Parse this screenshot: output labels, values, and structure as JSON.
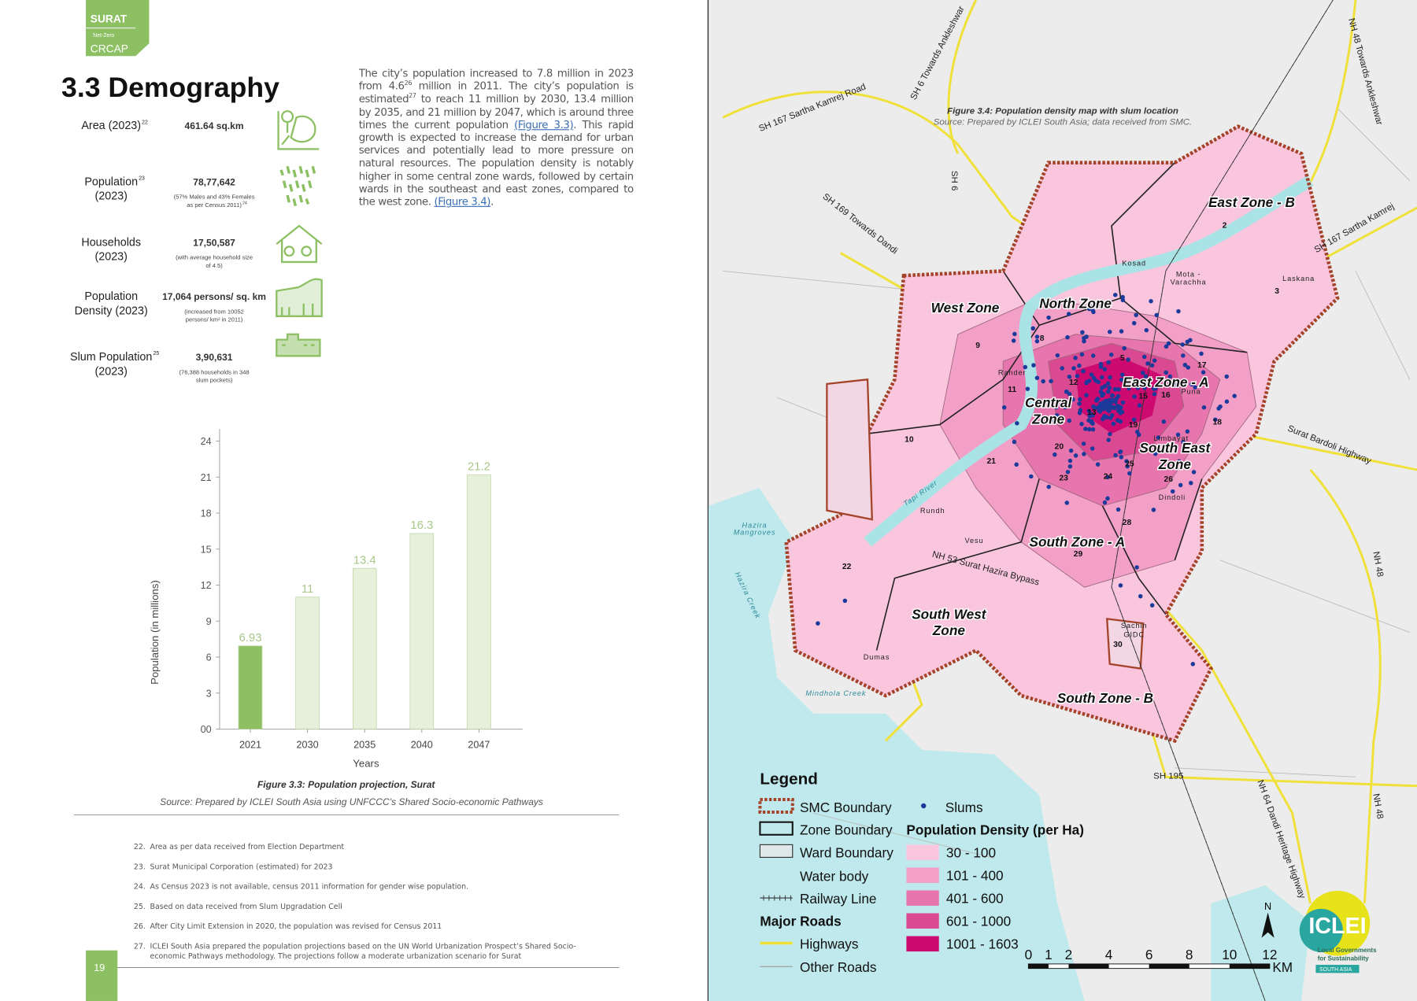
{
  "header": {
    "brand": "SURAT",
    "sub": "Net-Zero",
    "name": "CRCAP"
  },
  "section_title": "3.3 Demography",
  "stats": [
    {
      "label": [
        "Area (2023)"
      ],
      "sup": "22",
      "value": "461.64 sq.km"
    },
    {
      "label": [
        "Population",
        "(2023)"
      ],
      "sup": "23",
      "value": "78,77,642",
      "note": [
        "(57% Males and 43% Females",
        "as per Census 2011)"
      ],
      "note_sup": "24"
    },
    {
      "label": [
        "Households",
        "(2023)"
      ],
      "value": "17,50,587",
      "note": [
        "(with average household size",
        "of 4.5)"
      ]
    },
    {
      "label": [
        "Population",
        "Density (2023)"
      ],
      "value": "17,064 persons/ sq. km",
      "note": [
        "(increased from 10052",
        "persons/ km² in 2011)"
      ]
    },
    {
      "label": [
        "Slum Population",
        "(2023)"
      ],
      "sup": "25",
      "value": "3,90,631",
      "note": [
        "(76,388 households in 348",
        "slum pockets)"
      ]
    }
  ],
  "paragraph": [
    {
      "text": "The city’s population increased to 7.8 million in 2023 from 4.6"
    },
    {
      "sup": "26"
    },
    {
      "text": " million in 2011. The city’s population is estimated"
    },
    {
      "sup": "27"
    },
    {
      "text": " to reach 11 million by 2030, 13.4 million by 2035, and 21 million by 2047, which is around three times the current population "
    },
    {
      "link": "(Figure 3.3)"
    },
    {
      "text": ". This rapid growth is expected to increase the demand for urban services and potentially lead to more pressure on natural resources. The population density is notably higher in some central zone wards, followed by certain wards in the southeast and east zones, compared to the west zone. "
    },
    {
      "link": "(Figure 3.4)"
    },
    {
      "text": "."
    }
  ],
  "chart_data": {
    "type": "bar",
    "categories": [
      "2021",
      "2030",
      "2035",
      "2040",
      "2047"
    ],
    "values": [
      6.93,
      11,
      13.4,
      16.3,
      21.2
    ],
    "colors": [
      "#8cc063",
      "#e6f0da",
      "#e6f0da",
      "#e6f0da",
      "#e6f0da"
    ],
    "label_color": "#a9c98a",
    "xlabel": "Years",
    "ylabel": "Population (in millions)",
    "ylim": [
      0,
      25
    ],
    "yticks": [
      {
        "value": 0,
        "label": "00"
      },
      3,
      6,
      9,
      12,
      15,
      18,
      21,
      24
    ],
    "caption": "Figure 3.3: Population projection, Surat",
    "source": "Source: Prepared by ICLEI South Asia using UNFCCC’s Shared Socio-economic Pathways"
  },
  "footnotes": [
    {
      "n": "22.",
      "text": "Area as per data received from Election Department"
    },
    {
      "n": "23.",
      "text": "Surat Municipal Corporation (estimated) for 2023"
    },
    {
      "n": "24.",
      "text": "As Census 2023 is not available, census 2011 information for gender wise population."
    },
    {
      "n": "25.",
      "text": "Based on data received from Slum Upgradation Cell"
    },
    {
      "n": "26.",
      "text": "After City Limit Extension in 2020, the population was revised for Census 2011"
    },
    {
      "n": "27.",
      "text": "ICLEI South Asia prepared the population projections based on the UN World Urbanization Prospect’s Shared Socio-economic Pathways methodology. The projections follow a moderate urbanization scenario for Surat"
    }
  ],
  "page_number": "19",
  "map": {
    "caption": "Figure 3.4: Population density map with slum location",
    "source": "Source: Prepared by ICLEI South Asia; data received from SMC.",
    "zones": [
      [
        "East Zone - B"
      ],
      [
        "North Zone"
      ],
      [
        "West Zone"
      ],
      [
        "East Zone - A"
      ],
      [
        "Central",
        "Zone"
      ],
      [
        "South East",
        "Zone"
      ],
      [
        "South Zone - A"
      ],
      [
        "South West",
        "Zone"
      ],
      [
        "South Zone - B"
      ]
    ],
    "roads": [
      "SH 167 Sartha Kamrej Road",
      "SH 6 Towards Ankleshwar",
      "NH 48 Towards Ankleshwar",
      "SH 6",
      "SH 169 Towards Dandi",
      "SH 167 Sartha Kamrej",
      "Surat Bardoli Highway",
      "NH 48",
      "NH 53 Surat Hazira Bypass",
      "SH 195",
      "NH 64 Dandi Heritage Highway",
      "NH 48"
    ],
    "places": [
      "Kosad",
      "Mota -",
      "Varachha",
      "Laskana",
      "Rander",
      "Puna",
      "Limbayat",
      "Dindoli",
      "Rundh",
      "Vesu",
      "Dumas",
      "Sachin",
      "GIDC",
      "Hazira",
      "Mangroves",
      "Hazira Creek",
      "Mindhola Creek",
      "Tapi River"
    ],
    "wards": [
      "2",
      "3",
      "5",
      "8",
      "9",
      "10",
      "11",
      "12",
      "13",
      "15",
      "16",
      "17",
      "18",
      "19",
      "20",
      "21",
      "22",
      "23",
      "24",
      "25",
      "26",
      "28",
      "29",
      "30"
    ],
    "legend": {
      "title": "Legend",
      "items": [
        "SMC Boundary",
        "Zone Boundary",
        "Ward Boundary",
        "Water body",
        "Railway Line"
      ],
      "roads_title": "Major Roads",
      "roads": [
        "Highways",
        "Other Roads"
      ],
      "slums": "Slums",
      "density_title": "Population Density (per Ha)",
      "density": [
        {
          "label": "30 - 100",
          "color": "#f9c6de"
        },
        {
          "label": "101 - 400",
          "color": "#f3a0c8"
        },
        {
          "label": "401 - 600",
          "color": "#e876ae"
        },
        {
          "label": "601 - 1000",
          "color": "#da4a93"
        },
        {
          "label": "1001 - 1603",
          "color": "#cc0a6f"
        }
      ]
    },
    "scale": {
      "ticks": [
        0,
        1,
        2,
        4,
        6,
        8,
        10,
        12
      ],
      "unit": "KM"
    },
    "north": "N",
    "logo": {
      "name": "ICLEI",
      "tagline": [
        "Local Governments",
        "for Sustainability"
      ],
      "region": "SOUTH ASIA"
    }
  }
}
